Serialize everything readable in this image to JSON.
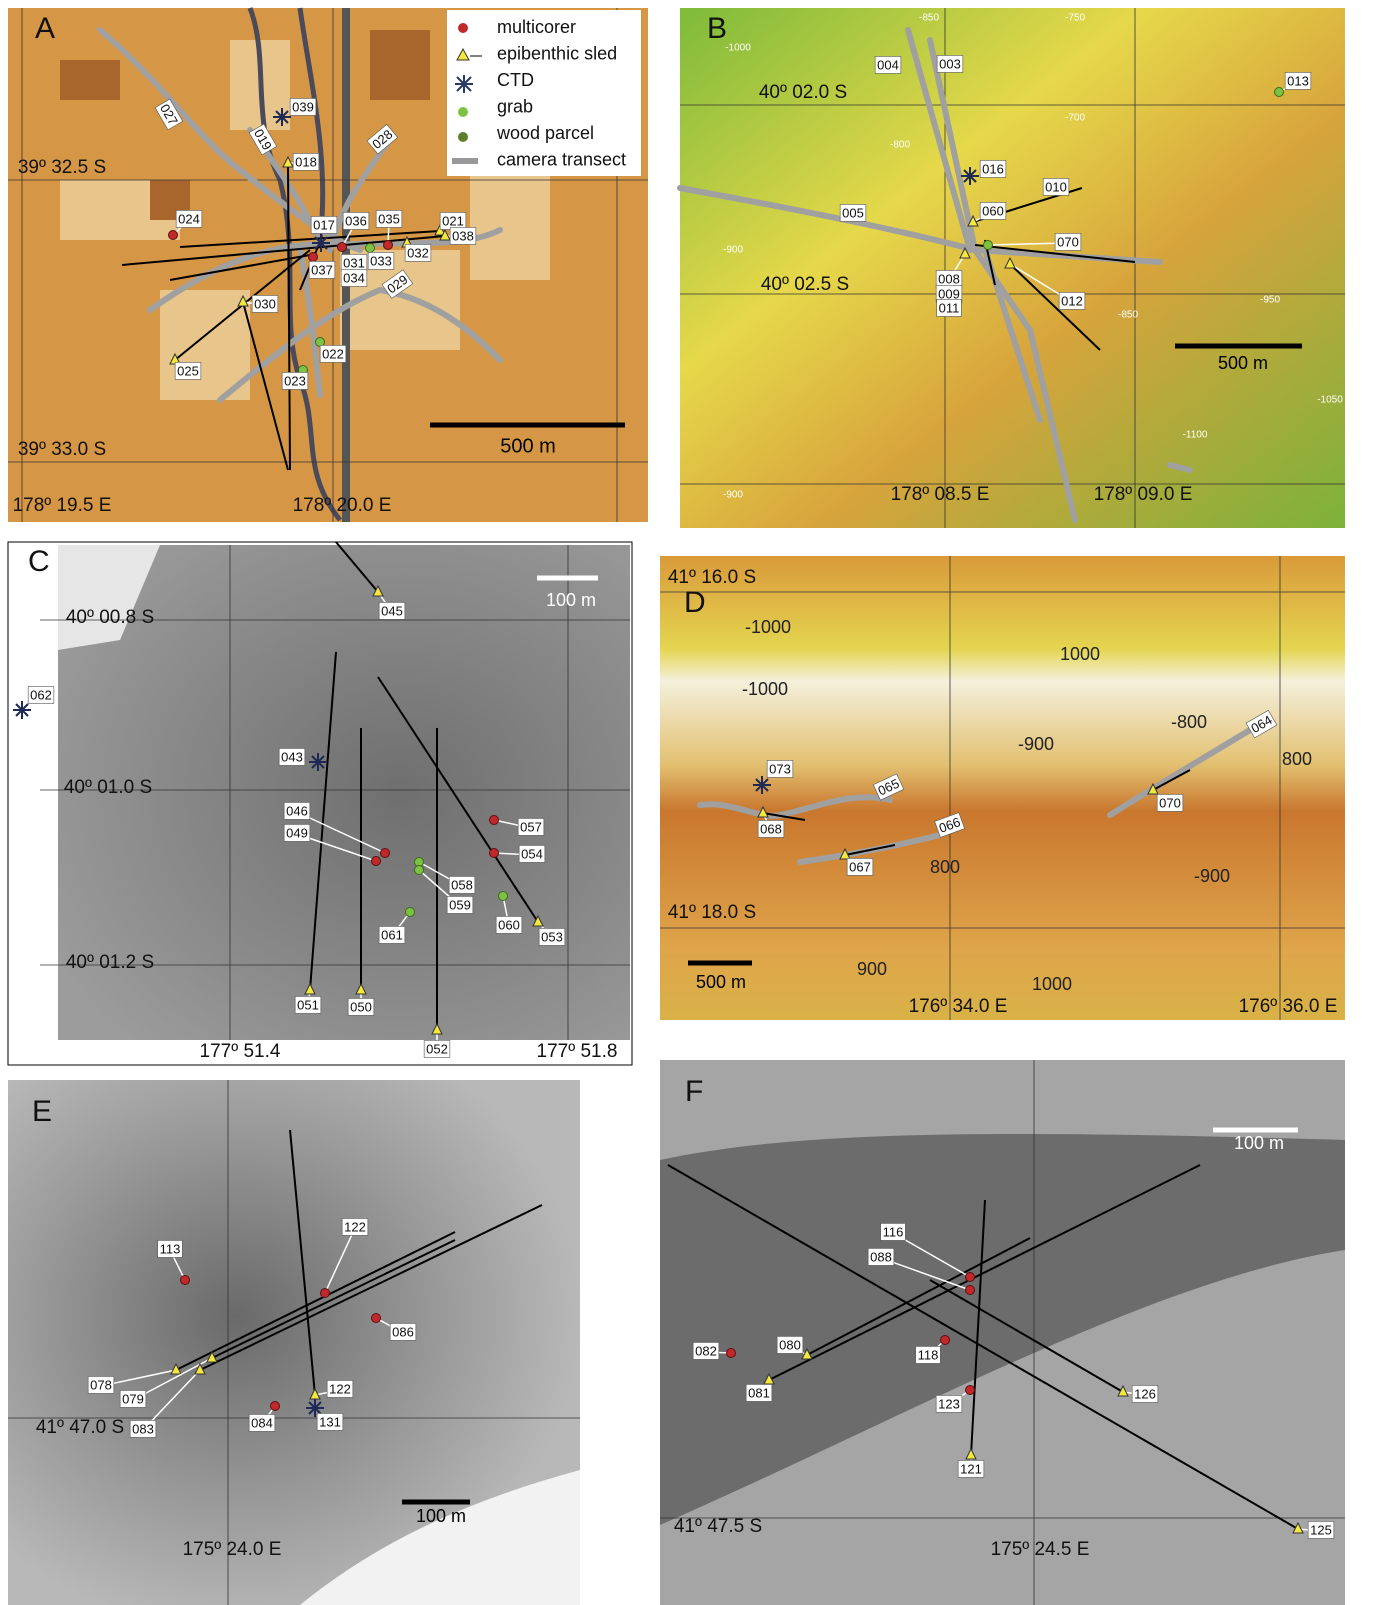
{
  "legend": {
    "items": [
      "multicorer",
      "epibenthic sled",
      "CTD",
      "grab",
      "wood parcel",
      "camera transect"
    ]
  },
  "panels": [
    {
      "letter": "A",
      "coords": [
        "39º 32.5 S",
        "39º 33.0 S",
        "178º 19.5 E",
        "178º 20.0 E"
      ],
      "scale": "500 m",
      "stations": [
        "039",
        "018",
        "027",
        "019",
        "028",
        "024",
        "017",
        "036",
        "035",
        "021",
        "038",
        "037",
        "031",
        "033",
        "032",
        "034",
        "029",
        "030",
        "025",
        "022",
        "023"
      ]
    },
    {
      "letter": "B",
      "coords": [
        "40º 02.0 S",
        "40º 02.5 S",
        "178º 08.5 E",
        "178º 09.0 E"
      ],
      "scale": "500 m",
      "stations": [
        "004",
        "003",
        "013",
        "016",
        "010",
        "060",
        "005",
        "070",
        "008",
        "009",
        "011",
        "012"
      ],
      "contours": [
        "-850",
        "-750",
        "-1000",
        "-700",
        "-800",
        "-900",
        "-850",
        "-950",
        "-1050",
        "-1100",
        "-900"
      ]
    },
    {
      "letter": "C",
      "coords": [
        "40º 00.8 S",
        "40º 01.0 S",
        "40º 01.2 S",
        "177º 51.4",
        "177º 51.8"
      ],
      "scale": "100 m",
      "stations": [
        "045",
        "062",
        "043",
        "046",
        "049",
        "057",
        "054",
        "058",
        "059",
        "060",
        "061",
        "053",
        "051",
        "050",
        "052"
      ]
    },
    {
      "letter": "D",
      "coords": [
        "41º 16.0 S",
        "41º 18.0 S",
        "176º 34.0 E",
        "176º 36.0 E"
      ],
      "scale": "500 m",
      "stations": [
        "073",
        "065",
        "068",
        "066",
        "067",
        "064",
        "070"
      ],
      "contours": [
        "-1000",
        "1000",
        "-1000",
        "-800",
        "-900",
        "800",
        "800",
        "-900",
        "900",
        "1000"
      ]
    },
    {
      "letter": "E",
      "coords": [
        "41º 47.0 S",
        "175º 24.0 E"
      ],
      "scale": "100 m",
      "stations": [
        "122",
        "113",
        "086",
        "078",
        "079",
        "083",
        "122",
        "084",
        "131"
      ]
    },
    {
      "letter": "F",
      "coords": [
        "41º 47.5 S",
        "175º 24.5 E"
      ],
      "scale": "100 m",
      "stations": [
        "116",
        "088",
        "082",
        "080",
        "118",
        "081",
        "126",
        "123",
        "121",
        "125"
      ]
    }
  ]
}
